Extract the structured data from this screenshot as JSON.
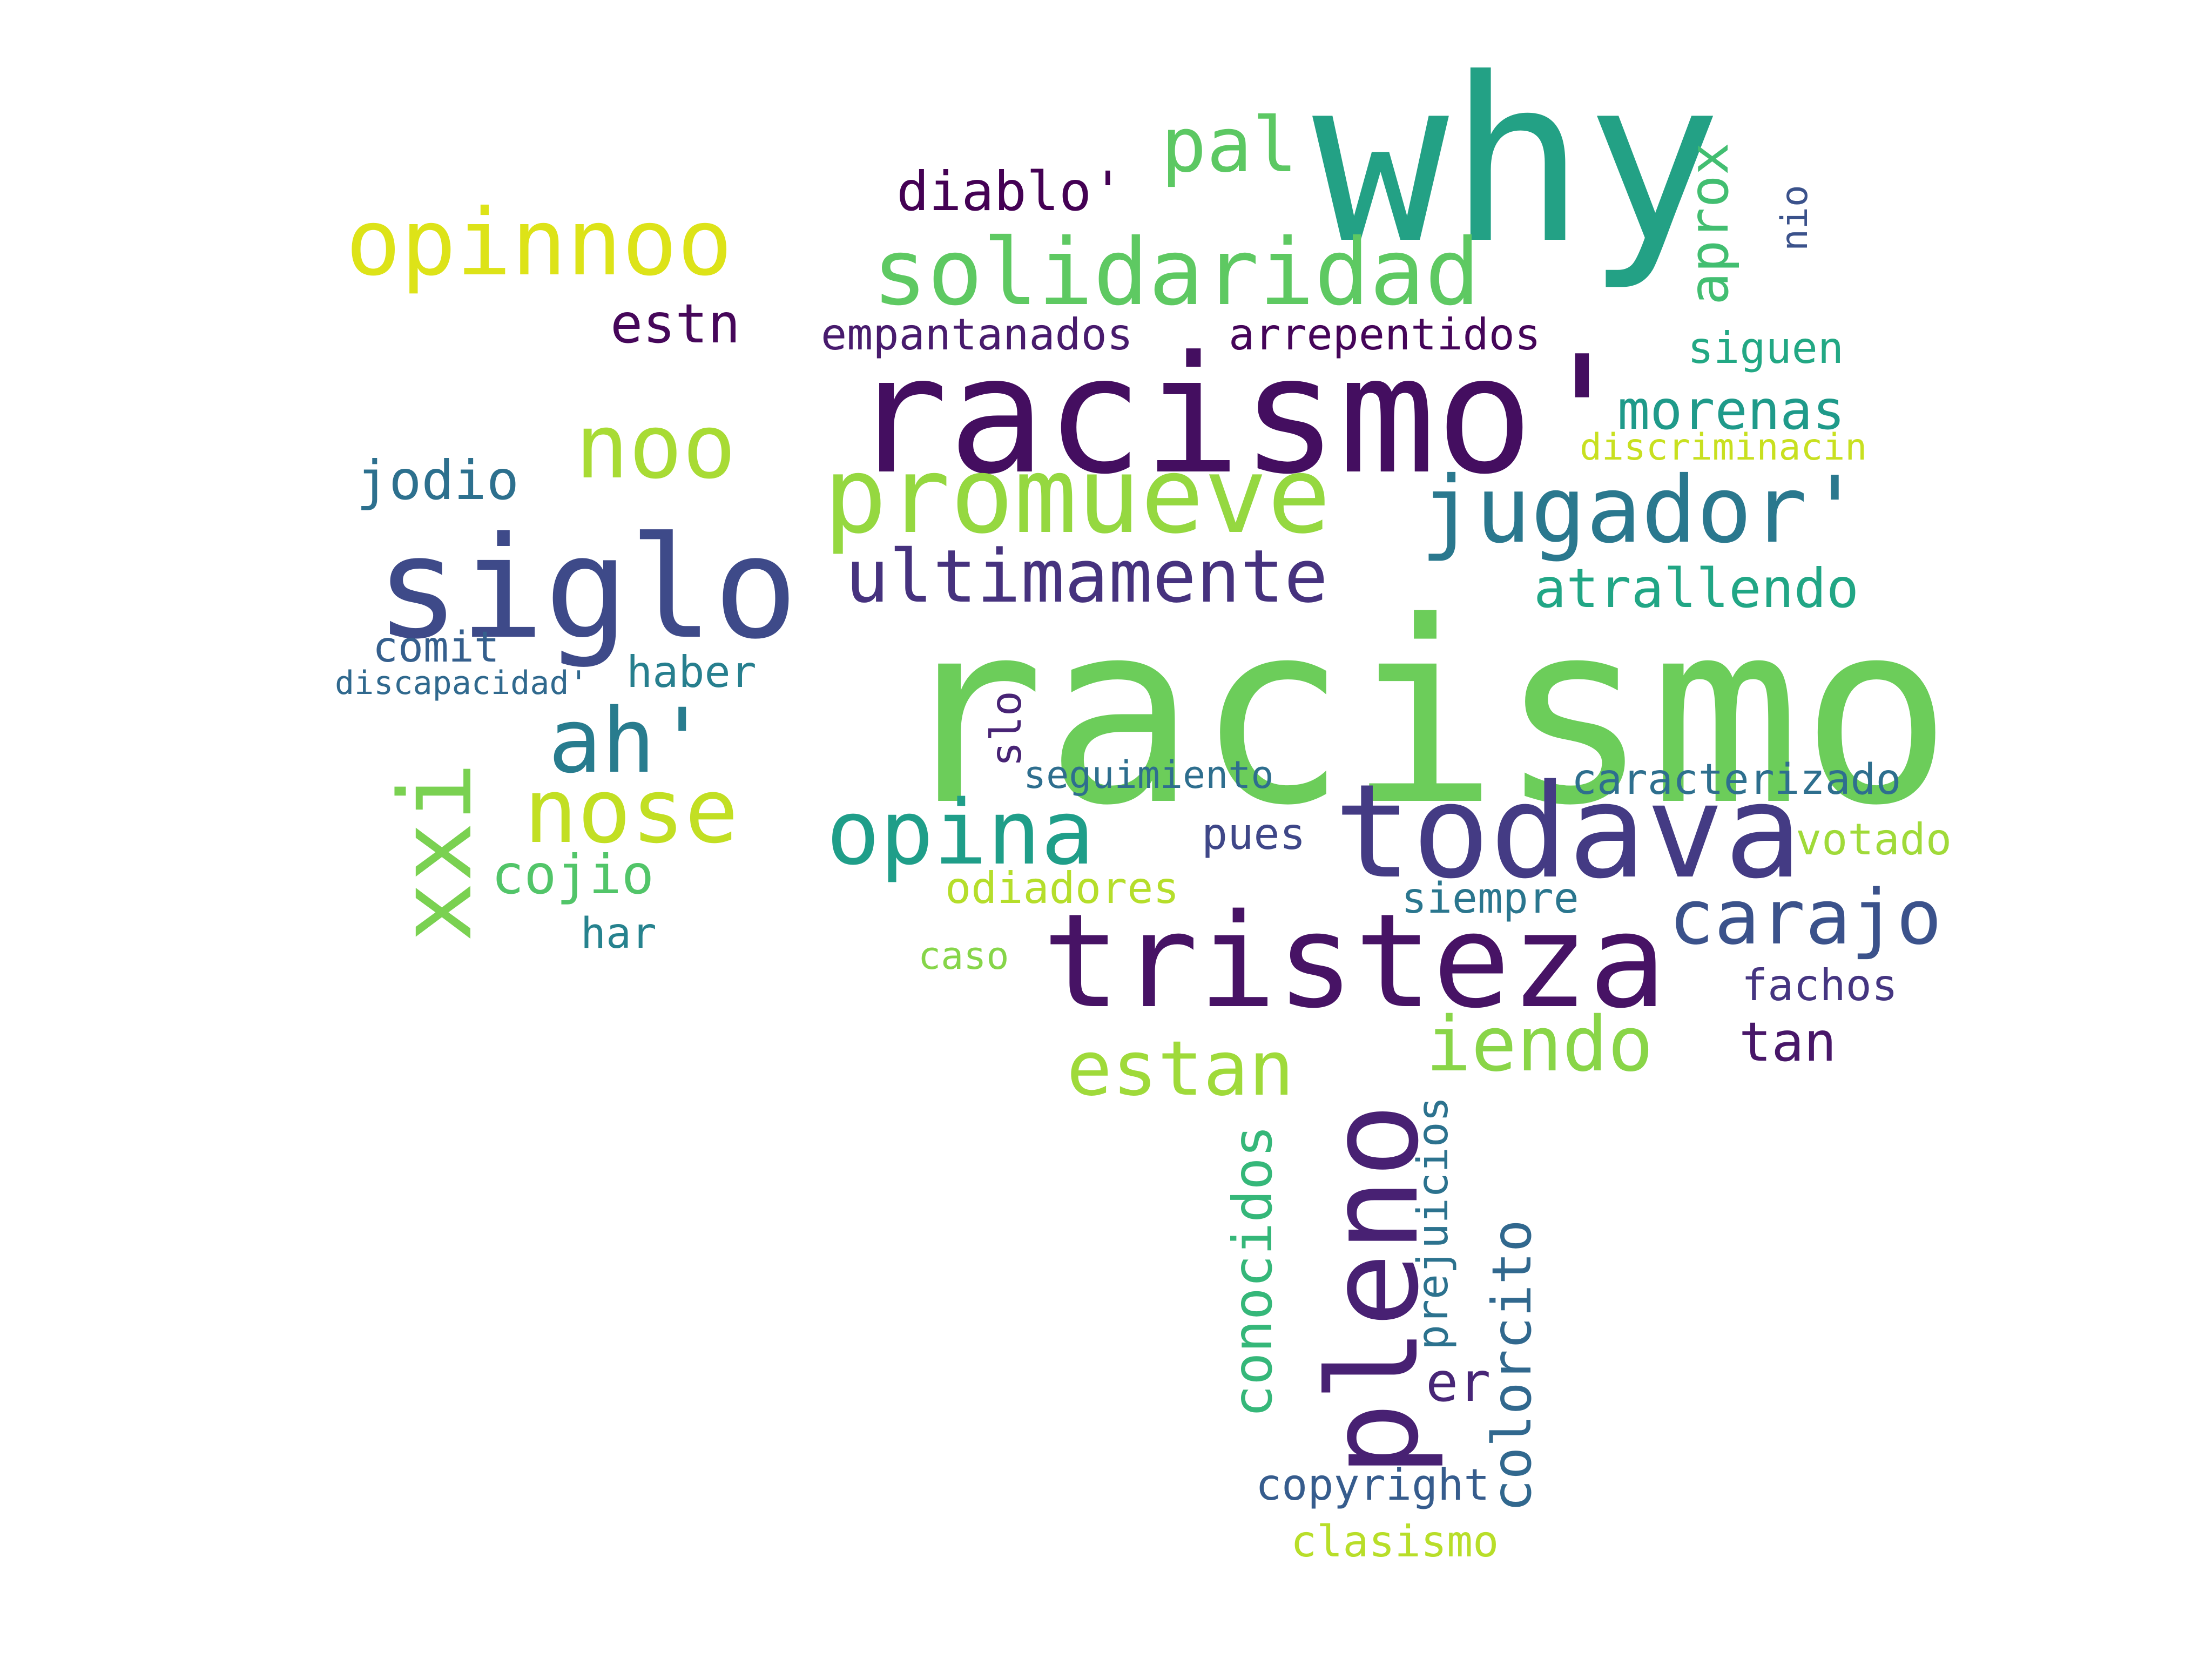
{
  "words": [
    {
      "text": "racismo",
      "color": "#6ccd5a"
    },
    {
      "text": "why",
      "color": "#23a185"
    },
    {
      "text": "racismo'",
      "color": "#440e60"
    },
    {
      "text": "siglo",
      "color": "#3e4a89"
    },
    {
      "text": "todava",
      "color": "#443b84"
    },
    {
      "text": "tristeza",
      "color": "#471365"
    },
    {
      "text": "pleno",
      "color": "#482173"
    },
    {
      "text": "promueve",
      "color": "#95d840"
    },
    {
      "text": "solidaridad",
      "color": "#5ec962"
    },
    {
      "text": "jugador'",
      "color": "#2a788e"
    },
    {
      "text": "opinnoo",
      "color": "#dde318"
    },
    {
      "text": "xxi",
      "color": "#7ad151"
    },
    {
      "text": "ultimamente",
      "color": "#46327e"
    },
    {
      "text": "opina",
      "color": "#1f9e89"
    },
    {
      "text": "nose",
      "color": "#c2df23"
    },
    {
      "text": "noo",
      "color": "#a8db34"
    },
    {
      "text": "ah'",
      "color": "#287c8e"
    },
    {
      "text": "carajo",
      "color": "#3b528b"
    },
    {
      "text": "estan",
      "color": "#9fda3a"
    },
    {
      "text": "iendo",
      "color": "#89d548"
    },
    {
      "text": "pal",
      "color": "#5cc863"
    },
    {
      "text": "aprox",
      "color": "#42be71"
    },
    {
      "text": "conocidos",
      "color": "#35b779"
    },
    {
      "text": "colorcito",
      "color": "#31688e"
    },
    {
      "text": "prejuicios",
      "color": "#2c728e"
    },
    {
      "text": "morenas",
      "color": "#1f9a8a"
    },
    {
      "text": "atrallendo",
      "color": "#21a685"
    },
    {
      "text": "diablo'",
      "color": "#440154"
    },
    {
      "text": "estn",
      "color": "#46075a"
    },
    {
      "text": "jodio",
      "color": "#2d708e"
    },
    {
      "text": "comit",
      "color": "#355f8d"
    },
    {
      "text": "haber",
      "color": "#277f8e"
    },
    {
      "text": "cojio",
      "color": "#52c569"
    },
    {
      "text": "har",
      "color": "#26828e"
    },
    {
      "text": "discapacidad'",
      "color": "#30698e"
    },
    {
      "text": "empantanados",
      "color": "#481b6d"
    },
    {
      "text": "arrepentidos",
      "color": "#450559"
    },
    {
      "text": "siguen",
      "color": "#22a884"
    },
    {
      "text": "discriminacin",
      "color": "#c8e020"
    },
    {
      "text": "caracterizado",
      "color": "#2e6f8e"
    },
    {
      "text": "votado",
      "color": "#a0da39"
    },
    {
      "text": "seguimiento",
      "color": "#2e6e8e"
    },
    {
      "text": "slo",
      "color": "#482475"
    },
    {
      "text": "pues",
      "color": "#3f4788"
    },
    {
      "text": "odiadores",
      "color": "#b5de2b"
    },
    {
      "text": "siempre",
      "color": "#2a768e"
    },
    {
      "text": "caso",
      "color": "#86d549"
    },
    {
      "text": "fachos",
      "color": "#453581"
    },
    {
      "text": "tan",
      "color": "#481769"
    },
    {
      "text": "er",
      "color": "#482677"
    },
    {
      "text": "copyright",
      "color": "#365c8d"
    },
    {
      "text": "clasismo",
      "color": "#b8de29"
    },
    {
      "text": "nio",
      "color": "#3b528b"
    }
  ]
}
